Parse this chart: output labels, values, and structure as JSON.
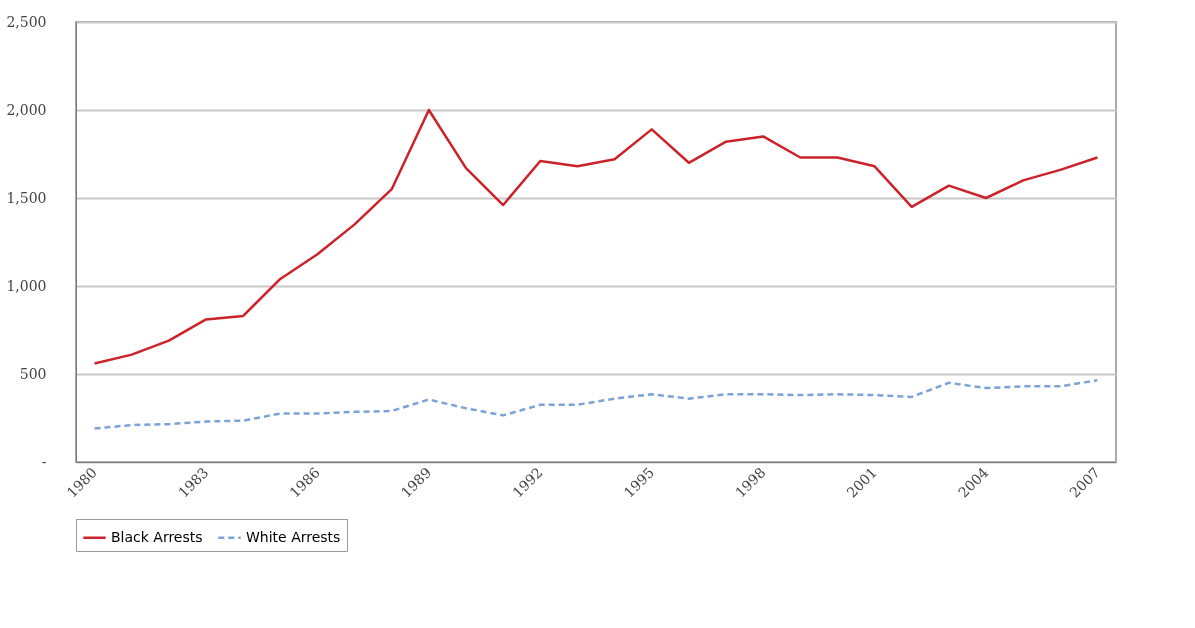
{
  "chart_data": {
    "type": "line",
    "x": [
      1980,
      1981,
      1982,
      1983,
      1984,
      1985,
      1986,
      1987,
      1988,
      1989,
      1990,
      1991,
      1992,
      1993,
      1994,
      1995,
      1996,
      1997,
      1998,
      1999,
      2000,
      2001,
      2002,
      2003,
      2004,
      2005,
      2006,
      2007
    ],
    "series": [
      {
        "name": "Black Arrests",
        "color": "#cc2229",
        "line_style": "solid",
        "values": [
          560,
          610,
          690,
          810,
          830,
          1040,
          1180,
          1350,
          1550,
          2000,
          1670,
          1460,
          1710,
          1680,
          1720,
          1890,
          1700,
          1820,
          1850,
          1730,
          1730,
          1680,
          1450,
          1570,
          1500,
          1600,
          1660,
          1730
        ]
      },
      {
        "name": "White Arrests",
        "color": "#7ba3d6",
        "line_style": "dashed",
        "values": [
          190,
          210,
          215,
          230,
          235,
          275,
          275,
          285,
          290,
          355,
          305,
          265,
          325,
          325,
          360,
          385,
          360,
          385,
          385,
          380,
          385,
          380,
          370,
          450,
          420,
          430,
          430,
          465
        ]
      }
    ],
    "xlim": [
      1979.5,
      2007.5
    ],
    "xticks": [
      1980,
      1983,
      1986,
      1989,
      1992,
      1995,
      1998,
      2001,
      2004,
      2007
    ],
    "ylim": [
      0,
      2500
    ],
    "yticks": [
      {
        "value": 0,
        "label": "-"
      },
      500,
      {
        "value": 1000,
        "label": "1,000"
      },
      {
        "value": 1500,
        "label": "1,500"
      },
      {
        "value": 2000,
        "label": "2,000"
      },
      {
        "value": 2500,
        "label": "2,500"
      }
    ],
    "grid": "y",
    "legend": "bottom",
    "marker": "none"
  }
}
